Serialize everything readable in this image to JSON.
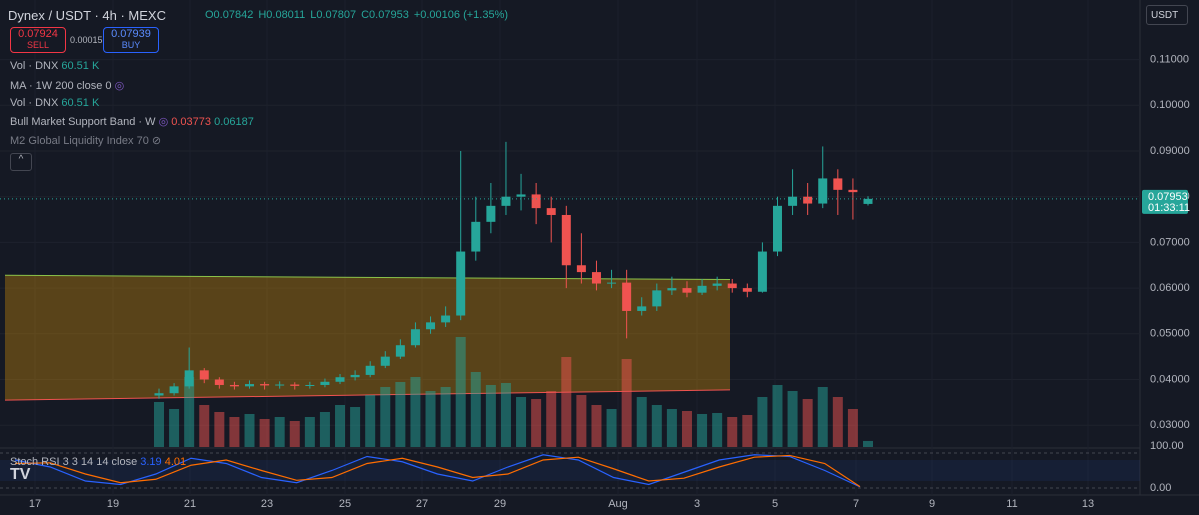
{
  "header": {
    "symbol": "Dynex / USDT · 4h · MEXC",
    "ohlc": [
      "O0.07842",
      "H0.08011",
      "L0.07807",
      "C0.07953",
      "+0.00106 (+1.35%)"
    ],
    "sell_price": "0.07924",
    "sell_label": "SELL",
    "spread": "0.00015",
    "buy_price": "0.07939",
    "buy_label": "BUY",
    "currency": "USDT"
  },
  "indicators": [
    {
      "name": "Vol · DNX",
      "value": "60.51 K"
    },
    {
      "name": "MA · 1W 200 close 0"
    },
    {
      "name": "Vol · DNX",
      "value": "60.51 K"
    },
    {
      "name": "Bull Market Support Band · W"
    },
    {
      "name": "M2 Global Liquidity Index 70"
    }
  ],
  "chart": {
    "type": "candlestick",
    "open": [
      0.0365,
      0.037,
      0.0385,
      0.042,
      0.04,
      0.0388,
      0.0385,
      0.039,
      0.0387,
      0.0389,
      0.0386,
      0.0388,
      0.0395,
      0.0405,
      0.041,
      0.043,
      0.045,
      0.0475,
      0.051,
      0.0525,
      0.054,
      0.068,
      0.0745,
      0.078,
      0.08,
      0.0805,
      0.0775,
      0.076,
      0.065,
      0.0635,
      0.061,
      0.0612,
      0.055,
      0.056,
      0.0595,
      0.06,
      0.059,
      0.0605,
      0.061,
      0.06,
      0.0592,
      0.068,
      0.078,
      0.08,
      0.0785,
      0.084,
      0.0815,
      0.07842
    ],
    "high": [
      0.038,
      0.0392,
      0.047,
      0.0425,
      0.0405,
      0.0395,
      0.0398,
      0.0395,
      0.0396,
      0.0394,
      0.0395,
      0.0402,
      0.0412,
      0.042,
      0.044,
      0.0462,
      0.0488,
      0.0525,
      0.0538,
      0.056,
      0.09,
      0.08,
      0.083,
      0.092,
      0.085,
      0.083,
      0.08,
      0.078,
      0.072,
      0.066,
      0.064,
      0.064,
      0.058,
      0.061,
      0.0625,
      0.0615,
      0.062,
      0.0625,
      0.062,
      0.061,
      0.07,
      0.08,
      0.086,
      0.083,
      0.091,
      0.086,
      0.084,
      0.08011
    ],
    "low": [
      0.0358,
      0.0365,
      0.038,
      0.0392,
      0.038,
      0.0378,
      0.038,
      0.0378,
      0.038,
      0.0378,
      0.038,
      0.0383,
      0.039,
      0.0398,
      0.0405,
      0.0425,
      0.0445,
      0.047,
      0.05,
      0.0515,
      0.053,
      0.066,
      0.072,
      0.076,
      0.077,
      0.074,
      0.07,
      0.06,
      0.061,
      0.0595,
      0.06,
      0.049,
      0.054,
      0.055,
      0.0585,
      0.058,
      0.0585,
      0.0595,
      0.059,
      0.058,
      0.059,
      0.067,
      0.076,
      0.076,
      0.0775,
      0.076,
      0.075,
      0.07807
    ],
    "close": [
      0.037,
      0.0385,
      0.042,
      0.04,
      0.0388,
      0.0385,
      0.039,
      0.0387,
      0.0389,
      0.0386,
      0.0388,
      0.0395,
      0.0405,
      0.041,
      0.043,
      0.045,
      0.0475,
      0.051,
      0.0525,
      0.054,
      0.068,
      0.0745,
      0.078,
      0.08,
      0.0805,
      0.0775,
      0.076,
      0.065,
      0.0635,
      0.061,
      0.0612,
      0.055,
      0.056,
      0.0595,
      0.06,
      0.059,
      0.0605,
      0.061,
      0.06,
      0.0592,
      0.068,
      0.078,
      0.08,
      0.0785,
      0.084,
      0.0815,
      0.081,
      0.07953
    ],
    "volume": [
      450,
      380,
      700,
      420,
      350,
      300,
      330,
      280,
      300,
      260,
      300,
      350,
      420,
      400,
      520,
      600,
      650,
      700,
      560,
      600,
      1100,
      750,
      620,
      640,
      500,
      480,
      560,
      900,
      520,
      420,
      380,
      880,
      500,
      420,
      380,
      360,
      330,
      340,
      300,
      320,
      500,
      620,
      560,
      480,
      600,
      500,
      380,
      60.51
    ],
    "up_color": "#26a69a",
    "down_color": "#ef5350",
    "bull_band": {
      "upper": [
        0.0628,
        0.06187
      ],
      "lower": [
        0.0355,
        0.03773
      ],
      "color": "#f7a600"
    },
    "price_ticks": [
      {
        "value": 0.11,
        "label": "0.11000"
      },
      {
        "value": 0.1,
        "label": "0.10000"
      },
      {
        "value": 0.09,
        "label": "0.09000"
      },
      {
        "value": 0.08,
        "label": "0.08000"
      },
      {
        "value": 0.07,
        "label": "0.07000"
      },
      {
        "value": 0.06,
        "label": "0.06000"
      },
      {
        "value": 0.05,
        "label": "0.05000"
      },
      {
        "value": 0.04,
        "label": "0.04000"
      },
      {
        "value": 0.03,
        "label": "0.03000"
      }
    ],
    "countdown": "01:33:11",
    "date_ticks": [
      "17",
      "19",
      "21",
      "23",
      "25",
      "27",
      "29",
      "Aug",
      "3",
      "5",
      "7",
      "9",
      "11",
      "13"
    ]
  },
  "stoch_rsi": {
    "name": "Stoch RSI 3 3 14 14 close",
    "k": [
      80,
      60,
      20,
      10,
      40,
      85,
      70,
      30,
      15,
      50,
      90,
      75,
      40,
      20,
      60,
      95,
      80,
      30,
      10,
      45,
      80,
      95,
      90,
      50,
      3.19
    ],
    "d": [
      70,
      72,
      40,
      15,
      25,
      65,
      80,
      50,
      22,
      30,
      70,
      85,
      60,
      30,
      40,
      80,
      88,
      55,
      20,
      28,
      60,
      88,
      93,
      70,
      4.01
    ],
    "k_color": "#2962ff",
    "d_color": "#ff6d00",
    "ticks": [
      {
        "value": 100,
        "label": "100.00"
      },
      {
        "value": 0,
        "label": "0.00"
      }
    ]
  }
}
